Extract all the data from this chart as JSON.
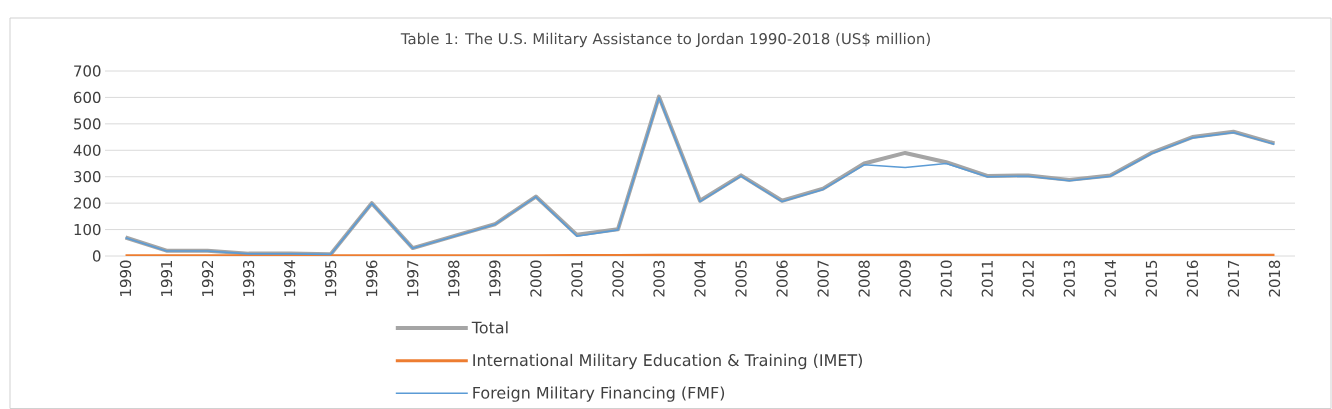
{
  "chart_data": {
    "type": "line",
    "title": "Table 1: The U.S. Military Assistance to Jordan 1990-2018 (US$ million)",
    "categories": [
      "1990",
      "1991",
      "1992",
      "1993",
      "1994",
      "1995",
      "1996",
      "1997",
      "1998",
      "1999",
      "2000",
      "2001",
      "2002",
      "2003",
      "2004",
      "2005",
      "2006",
      "2007",
      "2008",
      "2009",
      "2010",
      "2011",
      "2012",
      "2013",
      "2014",
      "2015",
      "2016",
      "2017",
      "2018"
    ],
    "series": [
      {
        "name": "Foreign Military Financing (FMF)",
        "color": "#5b9bd5",
        "values": [
          69,
          19,
          19,
          8,
          8,
          6,
          199,
          29,
          74,
          119,
          224,
          75,
          99,
          600,
          206,
          302,
          206,
          252,
          345,
          335,
          350,
          300,
          302,
          285,
          302,
          387,
          447,
          467,
          423
        ]
      },
      {
        "name": "International Military Education & Training (IMET)",
        "color": "#ed7d31",
        "values": [
          1,
          1,
          1,
          1,
          1,
          1,
          1,
          1,
          1,
          1,
          1,
          2,
          2,
          3,
          3,
          3,
          3,
          3,
          3,
          3,
          3,
          3,
          3,
          3,
          3,
          3,
          3,
          3,
          3
        ]
      },
      {
        "name": "Total",
        "color": "#a5a5a5",
        "values": [
          70,
          20,
          20,
          9,
          9,
          7,
          200,
          30,
          75,
          120,
          225,
          80,
          101,
          603,
          209,
          305,
          209,
          255,
          350,
          390,
          355,
          303,
          305,
          288,
          305,
          390,
          450,
          470,
          426
        ]
      }
    ],
    "ylim": [
      0,
      700
    ],
    "yticks": [
      0,
      100,
      200,
      300,
      400,
      500,
      600,
      700
    ],
    "grid": "y",
    "legend": "bottom"
  }
}
